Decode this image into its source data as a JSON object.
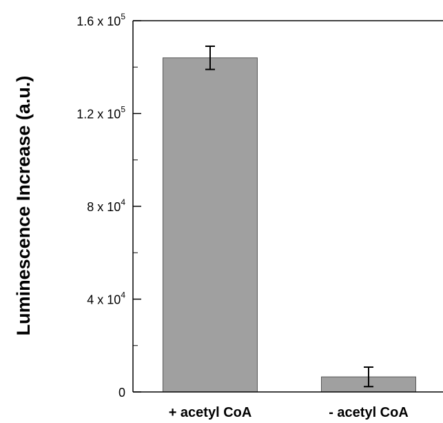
{
  "chart_data": {
    "type": "bar",
    "title": "",
    "xlabel": "",
    "ylabel": "Luminescence Increase (a.u.)",
    "categories": [
      "+ acetyl CoA",
      "- acetyl CoA"
    ],
    "values": [
      144000,
      6500
    ],
    "errors": [
      5000,
      4200
    ],
    "ylim": [
      0,
      160000
    ],
    "yticks": [
      {
        "value": 0,
        "mantissa": "0",
        "exponent": ""
      },
      {
        "value": 40000,
        "mantissa": "4 x 10",
        "exponent": "4"
      },
      {
        "value": 80000,
        "mantissa": "8 x 10",
        "exponent": "4"
      },
      {
        "value": 120000,
        "mantissa": "1.2 x 10",
        "exponent": "5"
      },
      {
        "value": 160000,
        "mantissa": "1.6 x 10",
        "exponent": "5"
      }
    ],
    "minor_tick_step": 20000,
    "grid": false,
    "legend": false,
    "bar_color": "#a0a0a0",
    "bar_edge_color": "#555555",
    "axis_color": "#000000"
  }
}
